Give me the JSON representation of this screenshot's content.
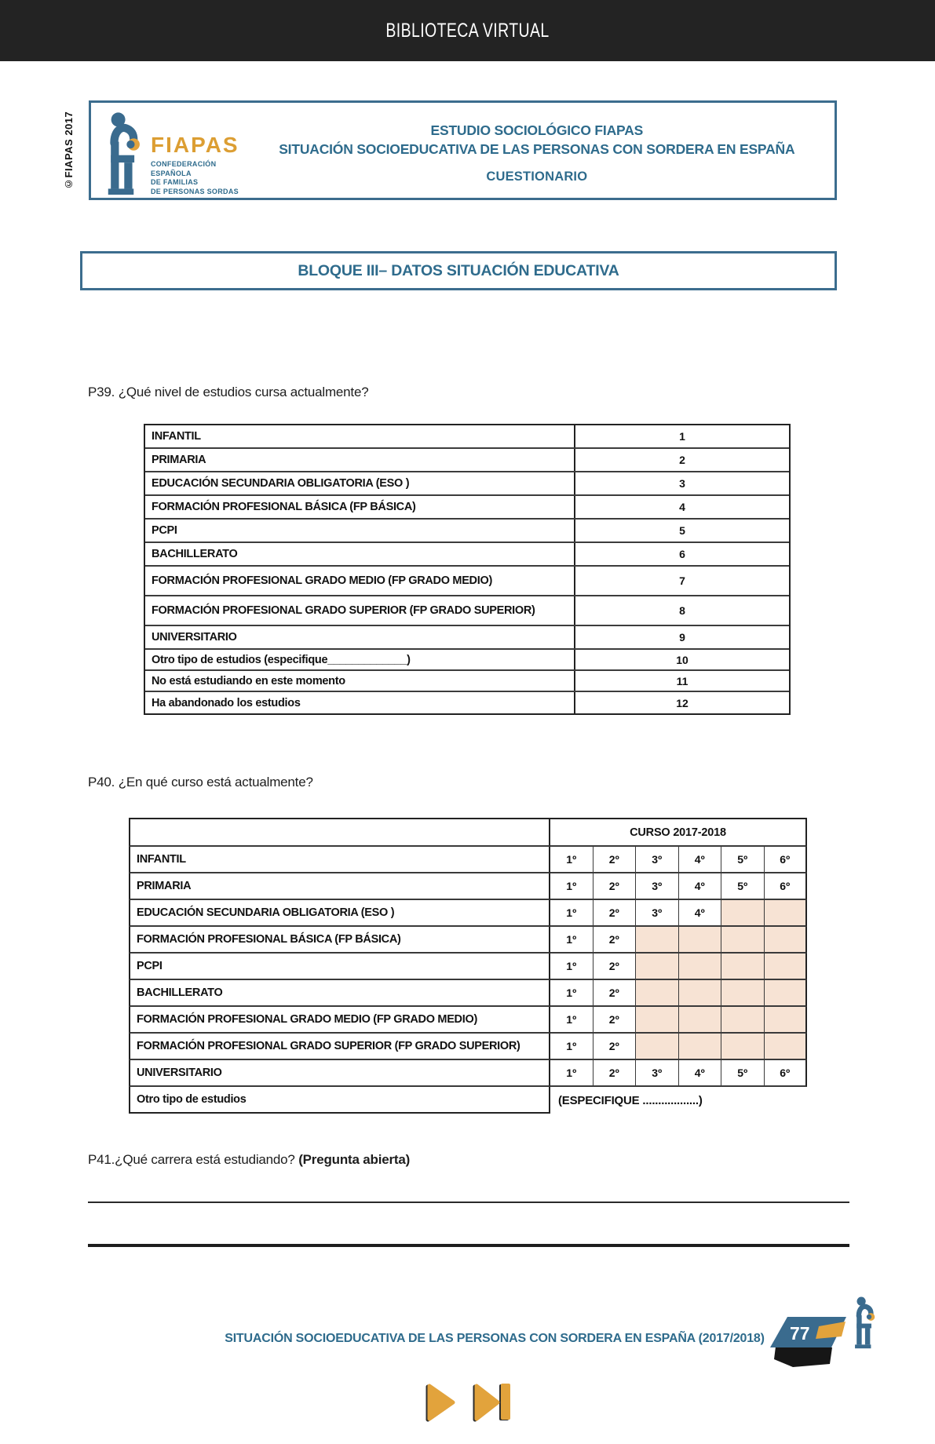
{
  "topbar": {
    "title": "BIBLIOTECA VIRTUAL",
    "bg_color": "#232323"
  },
  "copyright_vertical": "©FIAPAS 2017",
  "header_box": {
    "logo": {
      "icon": "fiapas-figure-icon",
      "wordmark": "FIAPAS",
      "subtitle_lines": [
        "CONFEDERACIÓN",
        "ESPAÑOLA",
        "DE FAMILIAS",
        "DE PERSONAS SORDAS"
      ]
    },
    "title_line1": "ESTUDIO SOCIOLÓGICO FIAPAS",
    "title_line2": "SITUACIÓN SOCIOEDUCATIVA DE LAS PERSONAS CON SORDERA EN ESPAÑA",
    "subtitle": "CUESTIONARIO"
  },
  "section_banner": "BLOQUE III– DATOS SITUACIÓN EDUCATIVA",
  "p39": {
    "question": "P39. ¿Qué nivel de estudios cursa actualmente?",
    "rows": [
      {
        "label": "INFANTIL",
        "code": "1"
      },
      {
        "label": "PRIMARIA",
        "code": "2"
      },
      {
        "label": "EDUCACIÓN SECUNDARIA OBLIGATORIA (ESO )",
        "code": "3"
      },
      {
        "label": "FORMACIÓN PROFESIONAL BÁSICA (FP BÁSICA)",
        "code": "4"
      },
      {
        "label": "PCPI",
        "code": "5"
      },
      {
        "label": "BACHILLERATO",
        "code": "6"
      },
      {
        "label": "FORMACIÓN PROFESIONAL GRADO MEDIO (FP GRADO MEDIO)",
        "code": "7"
      },
      {
        "label": "FORMACIÓN PROFESIONAL GRADO SUPERIOR (FP GRADO SUPERIOR)",
        "code": "8"
      },
      {
        "label": "UNIVERSITARIO",
        "code": "9"
      },
      {
        "label": "Otro tipo de estudios (especifique_____________)",
        "code": "10"
      },
      {
        "label": "No está estudiando en este momento",
        "code": "11"
      },
      {
        "label": "Ha abandonado los estudios",
        "code": "12"
      }
    ]
  },
  "p40": {
    "question": "P40. ¿En qué curso está actualmente?",
    "header": "CURSO 2017-2018",
    "rows": [
      {
        "label": "INFANTIL",
        "courses": [
          "1º",
          "2º",
          "3º",
          "4º",
          "5º",
          "6º"
        ]
      },
      {
        "label": "PRIMARIA",
        "courses": [
          "1º",
          "2º",
          "3º",
          "4º",
          "5º",
          "6º"
        ]
      },
      {
        "label": "EDUCACIÓN SECUNDARIA OBLIGATORIA (ESO )",
        "courses": [
          "1º",
          "2º",
          "3º",
          "4º",
          null,
          null
        ]
      },
      {
        "label": "FORMACIÓN PROFESIONAL BÁSICA (FP BÁSICA)",
        "courses": [
          "1º",
          "2º",
          null,
          null,
          null,
          null
        ]
      },
      {
        "label": "PCPI",
        "courses": [
          "1º",
          "2º",
          null,
          null,
          null,
          null
        ]
      },
      {
        "label": "BACHILLERATO",
        "courses": [
          "1º",
          "2º",
          null,
          null,
          null,
          null
        ]
      },
      {
        "label": "FORMACIÓN PROFESIONAL GRADO MEDIO (FP GRADO MEDIO)",
        "courses": [
          "1º",
          "2º",
          null,
          null,
          null,
          null
        ]
      },
      {
        "label": "FORMACIÓN PROFESIONAL GRADO SUPERIOR (FP GRADO SUPERIOR)",
        "courses": [
          "1º",
          "2º",
          null,
          null,
          null,
          null
        ]
      },
      {
        "label": "UNIVERSITARIO",
        "courses": [
          "1º",
          "2º",
          "3º",
          "4º",
          "5º",
          "6º"
        ]
      },
      {
        "label": "Otro tipo de estudios",
        "span_text": "(ESPECIFIQUE ..................)"
      }
    ]
  },
  "p41": {
    "question": "P41.¿Qué carrera está estudiando? ",
    "note_bold": "(Pregunta abierta)"
  },
  "footer": {
    "document_title": "SITUACIÓN SOCIOEDUCATIVA DE LAS PERSONAS CON SORDERA EN ESPAÑA (2017/2018)",
    "page_number": "77",
    "logo_icon": "fiapas-figure-icon"
  },
  "nav": {
    "next_icon": "play-next-icon",
    "last_icon": "skip-to-last-icon",
    "icon_color": "#e2a33c"
  },
  "colors": {
    "teal": "#2e6b8c",
    "border_teal": "#3c6d8e",
    "gold": "#dfa13c",
    "shaded_cell": "#f7e3d4",
    "topbar": "#232323"
  }
}
